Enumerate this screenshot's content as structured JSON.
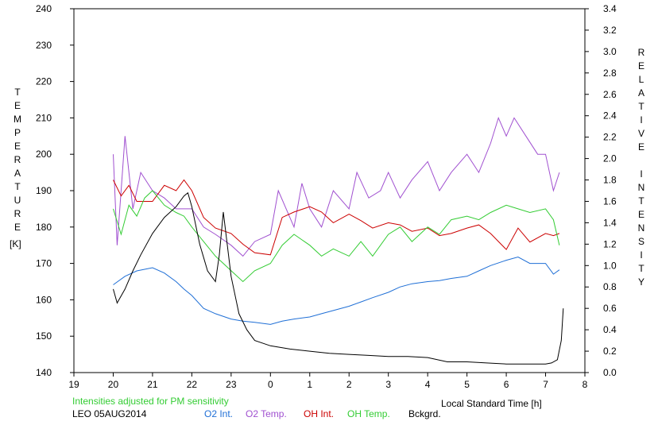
{
  "chart_data": {
    "type": "line",
    "left_axis_label": [
      "T",
      "E",
      "M",
      "P",
      "E",
      "R",
      "A",
      "T",
      "U",
      "R",
      "E"
    ],
    "left_axis_unit": "[K]",
    "right_axis_label": [
      "R",
      "E",
      "L",
      "A",
      "T",
      "I",
      "V",
      "E",
      " ",
      "I",
      "N",
      "T",
      "E",
      "N",
      "S",
      "I",
      "T",
      "Y"
    ],
    "xlabel": "Local Standard Time [h]",
    "x_ticks": [
      "19",
      "20",
      "21",
      "22",
      "23",
      "0",
      "1",
      "2",
      "3",
      "4",
      "5",
      "6",
      "7",
      "8"
    ],
    "x_tick_values": [
      19,
      20,
      21,
      22,
      23,
      24,
      25,
      26,
      27,
      28,
      29,
      30,
      31,
      32
    ],
    "xlim": [
      19,
      32
    ],
    "y_left_ticks": [
      "140",
      "150",
      "160",
      "170",
      "180",
      "190",
      "200",
      "210",
      "220",
      "230",
      "240"
    ],
    "ylim_left": [
      140,
      240
    ],
    "y_right_ticks": [
      "0.0",
      "0.2",
      "0.4",
      "0.6",
      "0.8",
      "1.0",
      "1.2",
      "1.4",
      "1.6",
      "1.8",
      "2.0",
      "2.2",
      "2.4",
      "2.6",
      "2.8",
      "3.0",
      "3.2",
      "3.4"
    ],
    "ylim_right": [
      0,
      3.4
    ],
    "annotation": "Intensities adjusted for PM sensitivity",
    "station": "LEO 05AUG2014",
    "series": [
      {
        "name": "O2 Int.",
        "axis": "right",
        "color": "#1f6fd6",
        "x": [
          20,
          20.3,
          20.6,
          21,
          21.3,
          21.6,
          21.8,
          22,
          22.3,
          22.6,
          23,
          23.3,
          23.6,
          24,
          24.3,
          24.6,
          25,
          25.3,
          25.6,
          26,
          26.3,
          26.6,
          27,
          27.3,
          27.6,
          28,
          28.3,
          28.6,
          29,
          29.3,
          29.6,
          30,
          30.3,
          30.6,
          31,
          31.2,
          31.35
        ],
        "y": [
          0.82,
          0.9,
          0.95,
          0.98,
          0.93,
          0.85,
          0.78,
          0.72,
          0.6,
          0.55,
          0.5,
          0.48,
          0.47,
          0.45,
          0.48,
          0.5,
          0.52,
          0.55,
          0.58,
          0.62,
          0.66,
          0.7,
          0.75,
          0.8,
          0.83,
          0.85,
          0.86,
          0.88,
          0.9,
          0.95,
          1.0,
          1.05,
          1.08,
          1.02,
          1.02,
          0.92,
          0.96
        ]
      },
      {
        "name": "O2 Temp.",
        "axis": "left",
        "color": "#a050d0",
        "x": [
          20,
          20.1,
          20.2,
          20.3,
          20.5,
          20.7,
          21,
          21.3,
          21.6,
          22,
          22.3,
          22.6,
          23,
          23.3,
          23.6,
          24,
          24.2,
          24.4,
          24.6,
          24.8,
          25,
          25.3,
          25.6,
          26,
          26.2,
          26.5,
          26.8,
          27,
          27.3,
          27.6,
          28,
          28.3,
          28.6,
          29,
          29.3,
          29.6,
          29.8,
          30,
          30.2,
          30.5,
          30.8,
          31,
          31.2,
          31.35
        ],
        "y": [
          200,
          175,
          190,
          205,
          185,
          195,
          190,
          188,
          185,
          185,
          180,
          178,
          175,
          172,
          176,
          178,
          190,
          185,
          180,
          192,
          185,
          180,
          190,
          185,
          195,
          188,
          190,
          195,
          188,
          193,
          198,
          190,
          195,
          200,
          195,
          203,
          210,
          205,
          210,
          205,
          200,
          200,
          190,
          195
        ]
      },
      {
        "name": "OH Int.",
        "axis": "right",
        "color": "#cc0000",
        "x": [
          20,
          20.2,
          20.4,
          20.6,
          21,
          21.3,
          21.6,
          21.8,
          22,
          22.3,
          22.6,
          23,
          23.3,
          23.6,
          24,
          24.3,
          24.6,
          25,
          25.3,
          25.6,
          26,
          26.3,
          26.6,
          27,
          27.3,
          27.6,
          28,
          28.3,
          28.6,
          29,
          29.3,
          29.6,
          30,
          30.3,
          30.6,
          31,
          31.2,
          31.35
        ],
        "y": [
          1.8,
          1.65,
          1.75,
          1.6,
          1.6,
          1.75,
          1.7,
          1.8,
          1.7,
          1.45,
          1.35,
          1.3,
          1.2,
          1.12,
          1.1,
          1.45,
          1.5,
          1.55,
          1.5,
          1.4,
          1.48,
          1.42,
          1.35,
          1.4,
          1.38,
          1.32,
          1.35,
          1.28,
          1.3,
          1.35,
          1.38,
          1.3,
          1.15,
          1.35,
          1.22,
          1.3,
          1.28,
          1.3
        ]
      },
      {
        "name": "OH Temp.",
        "axis": "left",
        "color": "#33cc33",
        "x": [
          20,
          20.2,
          20.4,
          20.6,
          20.8,
          21,
          21.3,
          21.6,
          21.8,
          22,
          22.3,
          22.6,
          23,
          23.3,
          23.6,
          24,
          24.3,
          24.6,
          25,
          25.3,
          25.6,
          26,
          26.3,
          26.6,
          27,
          27.3,
          27.6,
          28,
          28.3,
          28.6,
          29,
          29.3,
          29.6,
          30,
          30.3,
          30.6,
          31,
          31.2,
          31.35
        ],
        "y": [
          185,
          178,
          186,
          183,
          188,
          190,
          186,
          184,
          183,
          180,
          176,
          172,
          168,
          165,
          168,
          170,
          175,
          178,
          175,
          172,
          174,
          172,
          176,
          172,
          178,
          180,
          176,
          180,
          178,
          182,
          183,
          182,
          184,
          186,
          185,
          184,
          185,
          182,
          175
        ]
      },
      {
        "name": "Bckgrd.",
        "axis": "right",
        "color": "#000000",
        "x": [
          20,
          20.1,
          20.3,
          20.5,
          20.7,
          21,
          21.3,
          21.6,
          21.8,
          21.9,
          22,
          22.2,
          22.4,
          22.6,
          22.7,
          22.8,
          23,
          23.2,
          23.4,
          23.6,
          24,
          24.5,
          25,
          25.5,
          26,
          26.5,
          27,
          27.5,
          28,
          28.5,
          29,
          29.5,
          30,
          30.5,
          31,
          31.15,
          31.3,
          31.4,
          31.45
        ],
        "y": [
          0.78,
          0.65,
          0.78,
          0.95,
          1.1,
          1.3,
          1.45,
          1.55,
          1.65,
          1.68,
          1.55,
          1.2,
          0.95,
          0.85,
          1.1,
          1.5,
          0.9,
          0.55,
          0.4,
          0.3,
          0.25,
          0.22,
          0.2,
          0.18,
          0.17,
          0.16,
          0.15,
          0.15,
          0.14,
          0.1,
          0.1,
          0.09,
          0.08,
          0.08,
          0.08,
          0.09,
          0.12,
          0.3,
          0.6
        ]
      }
    ]
  }
}
